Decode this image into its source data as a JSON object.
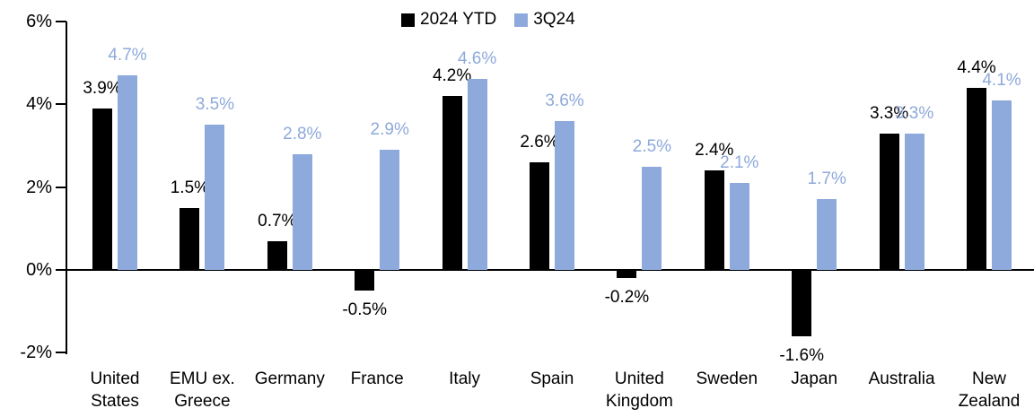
{
  "chart_data": {
    "type": "bar",
    "title": "",
    "xlabel": "",
    "ylabel": "",
    "categories": [
      "United States",
      "EMU ex. Greece",
      "Germany",
      "France",
      "Italy",
      "Spain",
      "United Kingdom",
      "Sweden",
      "Japan",
      "Australia",
      "New Zealand"
    ],
    "series": [
      {
        "name": "2024 YTD",
        "color": "#000000",
        "values": [
          3.9,
          1.5,
          0.7,
          -0.5,
          4.2,
          2.6,
          -0.2,
          2.4,
          -1.6,
          3.3,
          4.4
        ],
        "labels": [
          "3.9%",
          "1.5%",
          "0.7%",
          "-0.5%",
          "4.2%",
          "2.6%",
          "-0.2%",
          "2.4%",
          "-1.6%",
          "3.3%",
          "4.4%"
        ]
      },
      {
        "name": "3Q24",
        "color": "#8EA9DB",
        "values": [
          4.7,
          3.5,
          2.8,
          2.9,
          4.6,
          3.6,
          2.5,
          2.1,
          1.7,
          3.3,
          4.1
        ],
        "labels": [
          "4.7%",
          "3.5%",
          "2.8%",
          "2.9%",
          "4.6%",
          "3.6%",
          "2.5%",
          "2.1%",
          "1.7%",
          "3.3%",
          "4.1%"
        ]
      }
    ],
    "ylim": [
      -2,
      6
    ],
    "yticks": [
      {
        "value": 6,
        "label": "6%"
      },
      {
        "value": 4,
        "label": "4%"
      },
      {
        "value": 2,
        "label": "2%"
      },
      {
        "value": 0,
        "label": "0%"
      },
      {
        "value": -2,
        "label": "-2%"
      }
    ],
    "grid": false,
    "legend_position": "top-center",
    "value_labels_visible": true
  }
}
